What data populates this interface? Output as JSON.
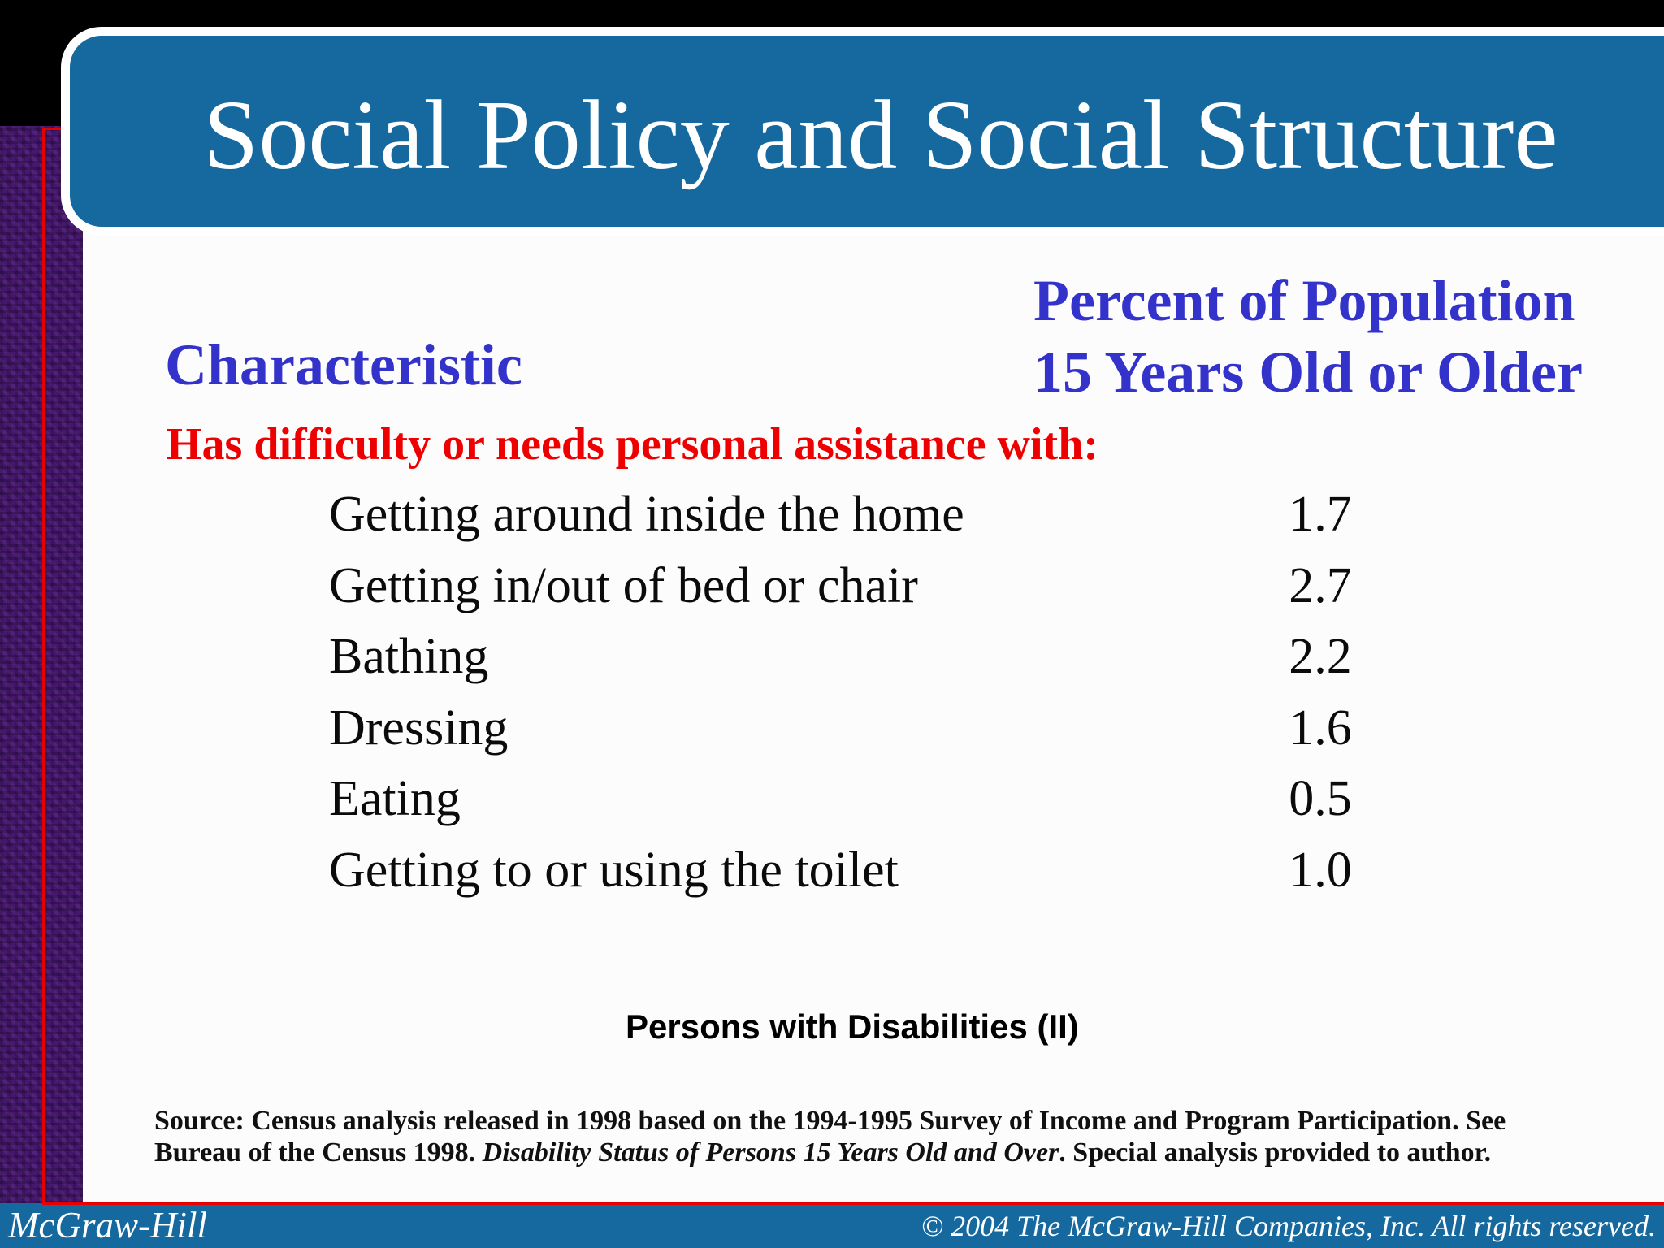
{
  "slide": {
    "title": "Social Policy and Social Structure",
    "table": {
      "characteristic_header": "Characteristic",
      "percent_header_line1": "Percent of Population",
      "percent_header_line2": "15 Years Old or Older",
      "section_heading": "Has difficulty or needs personal assistance with:",
      "rows": [
        {
          "label": "Getting around inside the home",
          "value": "1.7"
        },
        {
          "label": "Getting in/out of bed or chair",
          "value": "2.7"
        },
        {
          "label": "Bathing",
          "value": "2.2"
        },
        {
          "label": "Dressing",
          "value": "1.6"
        },
        {
          "label": "Eating",
          "value": "0.5"
        },
        {
          "label": "Getting to or using the toilet",
          "value": "1.0"
        }
      ]
    },
    "caption": "Persons with Disabilities (II)",
    "source": {
      "line1": "Source: Census analysis released in 1998 based on the 1994-1995 Survey of Income and Program Participation. See",
      "line2_prefix": "Bureau of the Census 1998. ",
      "line2_italic": "Disability Status of Persons 15 Years Old and Over",
      "line2_suffix": ". Special analysis provided to author."
    },
    "footer": {
      "brand": "McGraw-Hill",
      "copyright": "© 2004 The McGraw-Hill Companies, Inc. All rights reserved."
    },
    "colors": {
      "banner_blue": "#15699e",
      "header_text_blue": "#3333cc",
      "heading_red": "#ee0000",
      "frame_red": "#e80000",
      "sidebar_purple": "#45176e",
      "top_bar_black": "#000000"
    }
  },
  "chart_data": {
    "type": "table",
    "title": "Persons with Disabilities (II)",
    "columns": [
      "Characteristic",
      "Percent of Population 15 Years Old or Older"
    ],
    "section": "Has difficulty or needs personal assistance with:",
    "categories": [
      "Getting around inside the home",
      "Getting in/out of bed or chair",
      "Bathing",
      "Dressing",
      "Eating",
      "Getting to or using the toilet"
    ],
    "values": [
      1.7,
      2.7,
      2.2,
      1.6,
      0.5,
      1.0
    ]
  }
}
